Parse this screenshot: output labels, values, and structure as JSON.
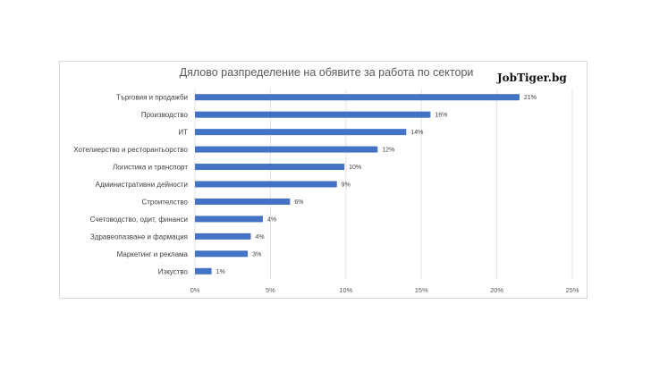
{
  "chart_data": {
    "type": "bar",
    "orientation": "horizontal",
    "title": "Дялово разпределение на обявите за работа по сектори",
    "watermark": "JobTiger.bg",
    "categories": [
      "Търговия и продажби",
      "Производство",
      "ИТ",
      "Хотелиерство и ресторантьорство",
      "Логистика и транспорт",
      "Административни дейности",
      "Строителство",
      "Счетоводство, одит, финанси",
      "Здравеопазване и фармация",
      "Маркетинг и реклама",
      "Изкуство"
    ],
    "values": [
      21.5,
      15.6,
      14.0,
      12.1,
      9.9,
      9.4,
      6.3,
      4.5,
      3.7,
      3.5,
      1.1
    ],
    "data_labels": [
      "21%",
      "16%",
      "14%",
      "12%",
      "10%",
      "9%",
      "6%",
      "4%",
      "4%",
      "3%",
      "1%"
    ],
    "xlim": [
      0,
      25
    ],
    "x_ticks": [
      "0%",
      "5%",
      "10%",
      "15%",
      "20%",
      "25%"
    ],
    "grid": "vertical",
    "bar_color": "#4472c4"
  }
}
